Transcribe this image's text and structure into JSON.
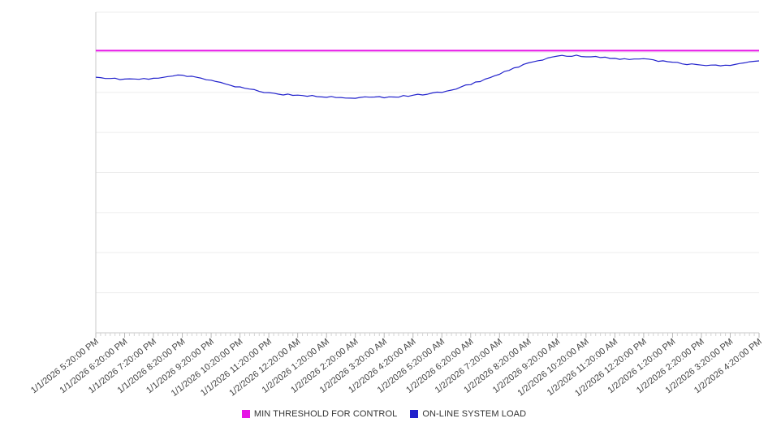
{
  "chart_data": {
    "type": "line",
    "title": "",
    "xlabel": "",
    "ylabel": "",
    "ylim": [
      0,
      100
    ],
    "grid": "horizontal",
    "legend_position": "bottom-center",
    "x_labels": [
      "1/1/2026 5:20:00 PM",
      "1/1/2026 6:20:00 PM",
      "1/1/2026 7:20:00 PM",
      "1/1/2026 8:20:00 PM",
      "1/1/2026 9:20:00 PM",
      "1/1/2026 10:20:00 PM",
      "1/1/2026 11:20:00 PM",
      "1/2/2026 12:20:00 AM",
      "1/2/2026 1:20:00 AM",
      "1/2/2026 2:20:00 AM",
      "1/2/2026 3:20:00 AM",
      "1/2/2026 4:20:00 AM",
      "1/2/2026 5:20:00 AM",
      "1/2/2026 6:20:00 AM",
      "1/2/2026 7:20:00 AM",
      "1/2/2026 8:20:00 AM",
      "1/2/2026 9:20:00 AM",
      "1/2/2026 10:20:00 AM",
      "1/2/2026 11:20:00 AM",
      "1/2/2026 12:20:00 PM",
      "1/2/2026 1:20:00 PM",
      "1/2/2026 2:20:00 PM",
      "1/2/2026 3:20:00 PM",
      "1/2/2026 4:20:00 PM"
    ],
    "series": [
      {
        "name": "MIN THRESHOLD FOR CONTROL",
        "kind": "threshold",
        "color": "#e616e6",
        "value": 88
      },
      {
        "name": "ON-LINE SYSTEM LOAD",
        "kind": "line",
        "color": "#2222cc",
        "values": [
          79.7,
          79.0,
          79.2,
          80.4,
          78.8,
          76.5,
          74.8,
          74.0,
          73.6,
          73.3,
          73.5,
          74.0,
          75.0,
          77.5,
          80.8,
          84.0,
          86.5,
          86.3,
          85.6,
          85.3,
          84.3,
          83.3,
          83.3,
          84.8
        ]
      }
    ]
  }
}
